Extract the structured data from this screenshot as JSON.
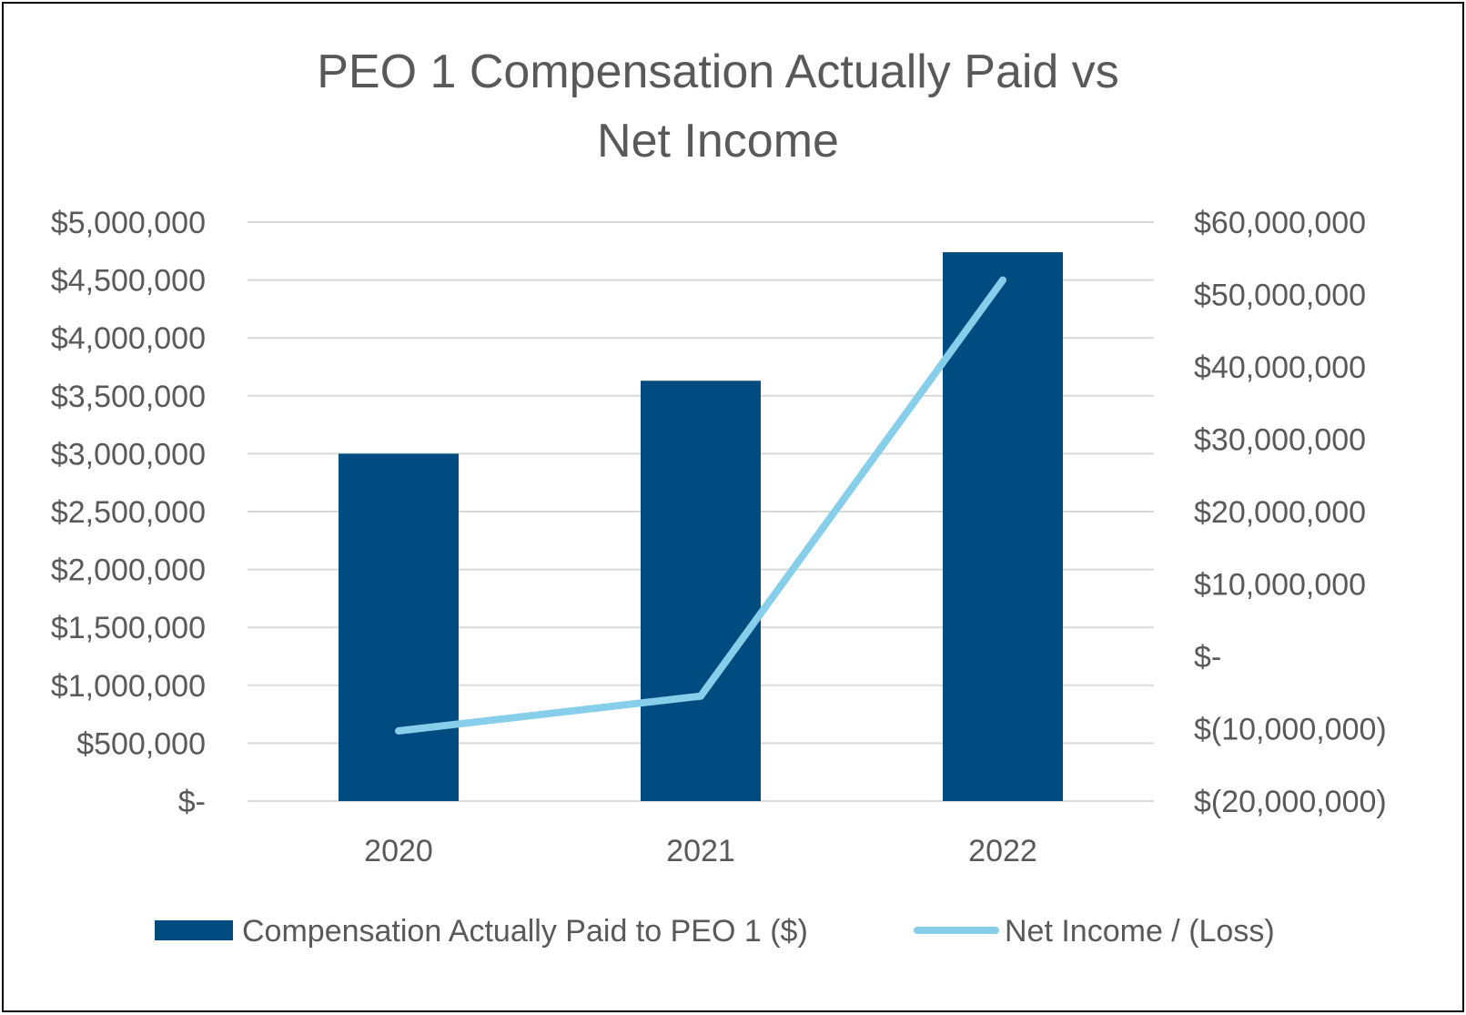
{
  "chart_data": {
    "type": "bar",
    "title_lines": [
      "PEO 1 Compensation Actually Paid vs",
      "Net Income"
    ],
    "categories": [
      "2020",
      "2021",
      "2022"
    ],
    "series": [
      {
        "name": "Compensation Actually Paid to PEO 1 ($)",
        "type": "bar",
        "axis": "left",
        "color": "#004b7f",
        "values": [
          3000000,
          3630000,
          4740000
        ]
      },
      {
        "name": "Net Income / (Loss)",
        "type": "line",
        "axis": "right",
        "color": "#87ceeb",
        "values": [
          -10300000,
          -5500000,
          52000000
        ]
      }
    ],
    "y_left": {
      "min": 0,
      "max": 5000000,
      "step": 500000,
      "tick_labels": [
        "$-",
        "$500,000",
        "$1,000,000",
        "$1,500,000",
        "$2,000,000",
        "$2,500,000",
        "$3,000,000",
        "$3,500,000",
        "$4,000,000",
        "$4,500,000",
        "$5,000,000"
      ]
    },
    "y_right": {
      "min": -20000000,
      "max": 60000000,
      "step": 10000000,
      "tick_labels": [
        "$(20,000,000)",
        "$(10,000,000)",
        "$-",
        "$10,000,000",
        "$20,000,000",
        "$30,000,000",
        "$40,000,000",
        "$50,000,000",
        "$60,000,000"
      ]
    },
    "grid": true,
    "legend_position": "bottom",
    "colors": {
      "text": "#595959",
      "grid": "#d9d9d9",
      "title": "#595959"
    }
  }
}
